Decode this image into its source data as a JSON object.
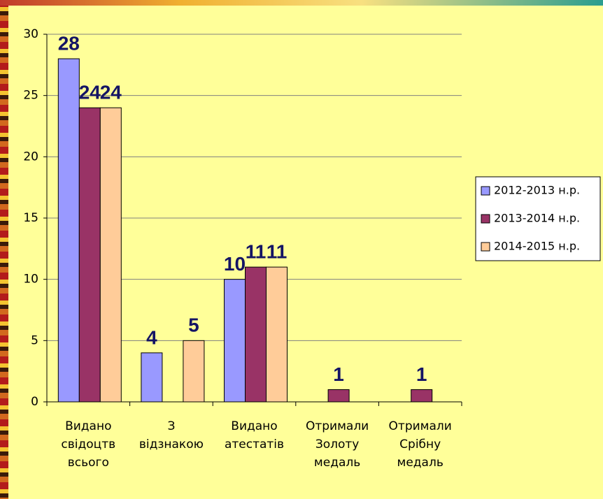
{
  "chart_data": {
    "type": "bar",
    "categories": [
      "Видано\nсвідоцтв\nвсього",
      "З\nвідзнакою",
      "Видано\nатестатів",
      "Отримали\nЗолоту\nмедаль",
      "Отримали\nСрібну\nмедаль"
    ],
    "series": [
      {
        "name": "2012-2013 н.р.",
        "color": "#9999ff",
        "values": [
          28,
          4,
          10,
          null,
          null
        ]
      },
      {
        "name": "2013-2014 н.р.",
        "color": "#993366",
        "values": [
          24,
          null,
          11,
          1,
          1
        ]
      },
      {
        "name": "2014-2015 н.р.",
        "color": "#ffcc99",
        "values": [
          24,
          5,
          11,
          null,
          null
        ]
      }
    ],
    "ylim": [
      0,
      30
    ],
    "yticks": [
      0,
      5,
      10,
      15,
      20,
      25,
      30
    ],
    "grid": true,
    "legend": "right"
  }
}
